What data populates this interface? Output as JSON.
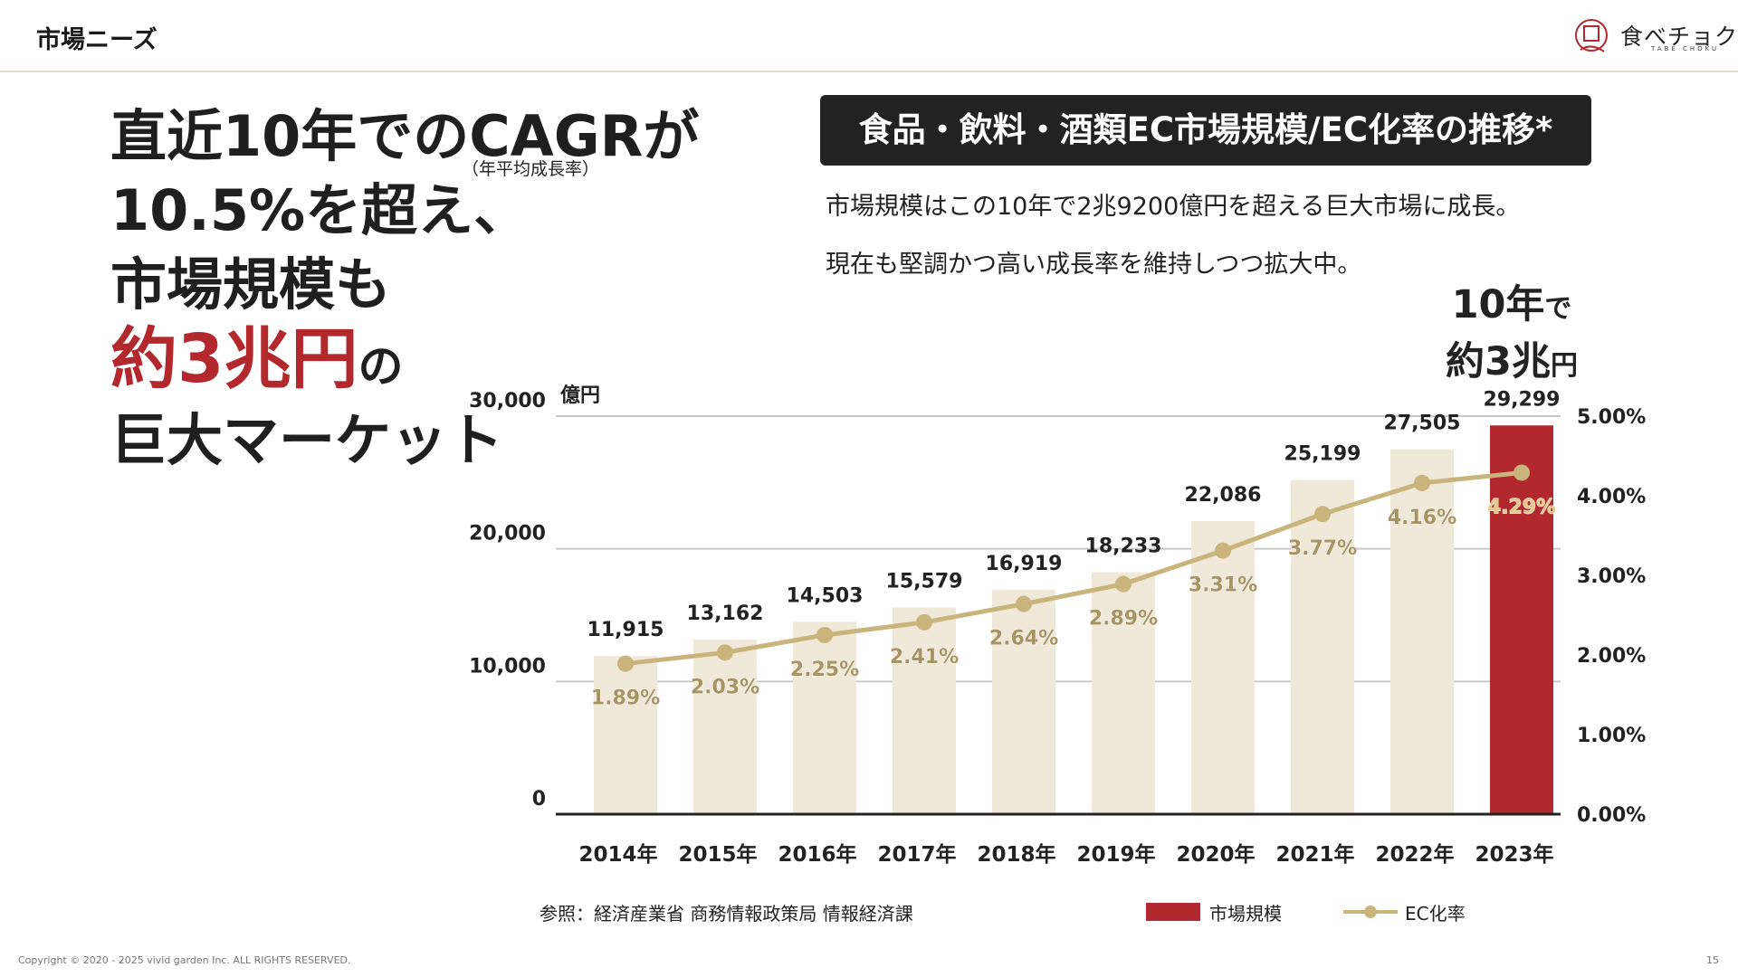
{
  "header": {
    "title": "市場ニーズ",
    "logo_text": "食べチョク",
    "logo_sub": "TABE CHOKU"
  },
  "headline": {
    "line1": "直近10年でのCAGRが",
    "cagr_note": "（年平均成長率）",
    "line2": "10.5%を超え、",
    "line3": "市場規模も",
    "line4_accent": "約3兆円",
    "line4_suffix": "の",
    "line5": "巨大マーケット"
  },
  "chart_title": "食品・飲料・酒類EC市場規模/EC化率の推移*",
  "description": {
    "line1": "市場規模はこの10年で2兆9200億円を超える巨大市場に成長。",
    "line2": "現在も堅調かつ高い成長率を維持しつつ拡大中。"
  },
  "callout": {
    "line1_big": "10年",
    "line1_small": "で",
    "line2_big": "約3兆",
    "line2_small": "円"
  },
  "chart_data": {
    "type": "bar",
    "categories": [
      "2014年",
      "2015年",
      "2016年",
      "2017年",
      "2018年",
      "2019年",
      "2020年",
      "2021年",
      "2022年",
      "2023年"
    ],
    "series": [
      {
        "name": "市場規模",
        "values": [
          11915,
          13162,
          14503,
          15579,
          16919,
          18233,
          22086,
          25199,
          27505,
          29299
        ],
        "labels": [
          "11,915",
          "13,162",
          "14,503",
          "15,579",
          "16,919",
          "18,233",
          "22,086",
          "25,199",
          "27,505",
          "29,299"
        ]
      },
      {
        "name": "EC化率",
        "type": "line",
        "values": [
          1.89,
          2.03,
          2.25,
          2.41,
          2.64,
          2.89,
          3.31,
          3.77,
          4.16,
          4.29
        ],
        "labels": [
          "1.89%",
          "2.03%",
          "2.25%",
          "2.41%",
          "2.64%",
          "2.89%",
          "3.31%",
          "3.77%",
          "4.16%",
          "4.29%"
        ]
      }
    ],
    "y_left": {
      "ticks": [
        0,
        10000,
        20000,
        30000
      ],
      "tick_labels": [
        "0",
        "10,000",
        "20,000",
        "30,000"
      ],
      "unit": "億円",
      "ylim": [
        0,
        30000
      ]
    },
    "y_right": {
      "ticks": [
        0,
        1,
        2,
        3,
        4,
        5
      ],
      "tick_labels": [
        "0.00%",
        "1.00%",
        "2.00%",
        "3.00%",
        "4.00%",
        "5.00%"
      ],
      "ylim": [
        0,
        5
      ]
    },
    "grid": true,
    "legend_position": "bottom-right",
    "highlight_index": 9,
    "colors": {
      "bar": "#f0e8d8",
      "bar_highlight": "#b2282d",
      "line": "#c9b47c",
      "line_label": "#a89462",
      "grid": "#c8c8c8",
      "axis": "#222222"
    }
  },
  "source": "参照：経済産業省 商務情報政策局 情報経済課",
  "legend": {
    "bar_label": "市場規模",
    "line_label": "EC化率"
  },
  "footer": {
    "copyright": "Copyright © 2020 - 2025 vivid garden Inc. ALL RIGHTS RESERVED.",
    "page": "15"
  }
}
